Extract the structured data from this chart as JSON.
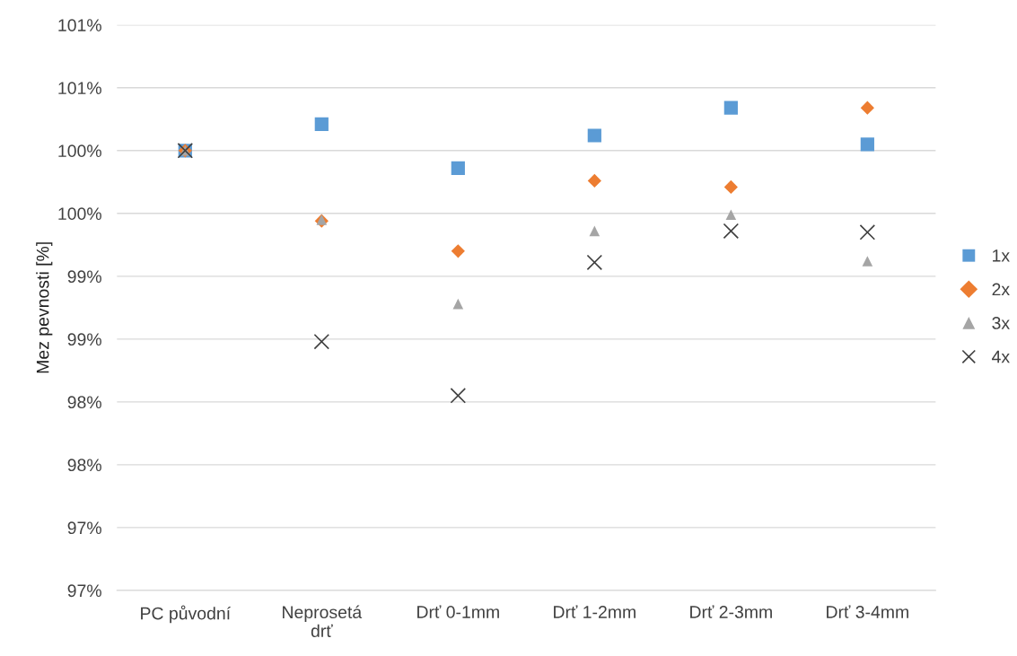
{
  "chart_data": {
    "type": "scatter",
    "ylabel": "Mez pevnosti [%]",
    "categories": [
      "PC původní",
      "Neprosetá\ndrť",
      "Drť 0-1mm",
      "Drť 1-2mm",
      "Drť 2-3mm",
      "Drť 3-4mm"
    ],
    "series": [
      {
        "name": "1x",
        "color": "#5b9bd5",
        "marker": "square",
        "values": [
          100.0,
          100.21,
          99.86,
          100.12,
          100.34,
          100.05
        ]
      },
      {
        "name": "2x",
        "color": "#ed7d31",
        "marker": "diamond",
        "values": [
          100.0,
          99.44,
          99.2,
          99.76,
          99.71,
          100.34
        ]
      },
      {
        "name": "3x",
        "color": "#a5a5a5",
        "marker": "triangle",
        "values": [
          100.0,
          99.45,
          98.78,
          99.36,
          99.49,
          99.12
        ]
      },
      {
        "name": "4x",
        "color": "#404040",
        "marker": "cross",
        "values": [
          100.0,
          98.48,
          98.05,
          99.11,
          99.36,
          99.35
        ]
      }
    ],
    "ylim": [
      96.5,
      101.0
    ],
    "yticks": [
      {
        "value": 96.5,
        "label": "97%"
      },
      {
        "value": 97.0,
        "label": "97%"
      },
      {
        "value": 97.5,
        "label": "98%"
      },
      {
        "value": 98.0,
        "label": "98%"
      },
      {
        "value": 98.5,
        "label": "99%"
      },
      {
        "value": 99.0,
        "label": "99%"
      },
      {
        "value": 99.5,
        "label": "100%"
      },
      {
        "value": 100.0,
        "label": "100%"
      },
      {
        "value": 100.5,
        "label": "101%"
      },
      {
        "value": 101.0,
        "label": "101%"
      }
    ],
    "grid": "y",
    "legend": "right"
  }
}
